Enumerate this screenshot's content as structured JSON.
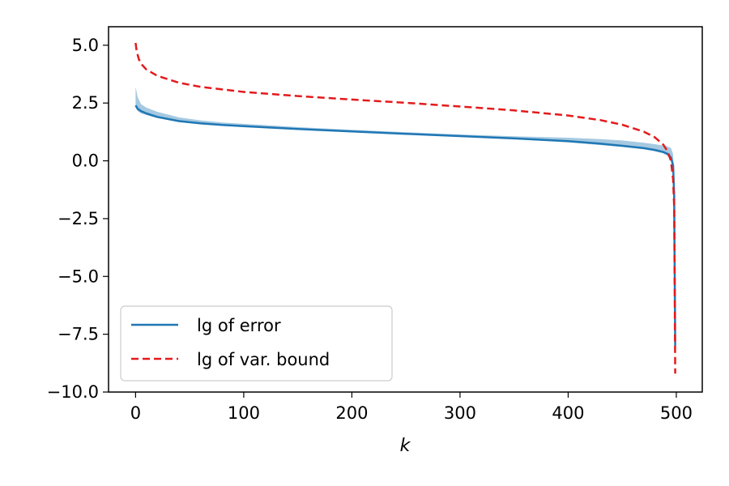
{
  "chart_data": {
    "type": "line",
    "title": "",
    "xlabel": "k",
    "ylabel": "",
    "xlim": [
      -25,
      524
    ],
    "ylim": [
      -10.0,
      5.8
    ],
    "x_ticks": [
      0,
      100,
      200,
      300,
      400,
      500
    ],
    "y_ticks": [
      5.0,
      2.5,
      0.0,
      -2.5,
      -5.0,
      -7.5,
      -10.0
    ],
    "y_tick_labels": [
      "5.0",
      "2.5",
      "0.0",
      "−2.5",
      "−5.0",
      "−7.5",
      "−10.0"
    ],
    "grid": false,
    "legend_position": "lower-left",
    "series": [
      {
        "name": "lg of error",
        "style": "solid",
        "color": "#1f77b4",
        "x": [
          0,
          2,
          5,
          10,
          20,
          40,
          60,
          80,
          100,
          150,
          200,
          250,
          300,
          350,
          400,
          430,
          450,
          470,
          480,
          488,
          492,
          495,
          497,
          498,
          499
        ],
        "y": [
          2.4,
          2.25,
          2.15,
          2.05,
          1.9,
          1.72,
          1.62,
          1.55,
          1.5,
          1.38,
          1.27,
          1.17,
          1.07,
          0.97,
          0.85,
          0.74,
          0.65,
          0.55,
          0.47,
          0.38,
          0.3,
          0.15,
          -0.2,
          -1.5,
          -8.0
        ]
      },
      {
        "name": "lg of var. bound",
        "style": "dashed",
        "color": "#e41a1c",
        "x": [
          0,
          1,
          3,
          5,
          10,
          20,
          40,
          60,
          100,
          150,
          200,
          250,
          300,
          350,
          400,
          430,
          450,
          470,
          480,
          488,
          492,
          495,
          497,
          498,
          499
        ],
        "y": [
          5.1,
          4.75,
          4.4,
          4.2,
          3.95,
          3.68,
          3.38,
          3.2,
          2.98,
          2.8,
          2.65,
          2.51,
          2.35,
          2.18,
          1.96,
          1.76,
          1.56,
          1.26,
          1.02,
          0.7,
          0.4,
          0.0,
          -0.8,
          -2.0,
          -9.2
        ]
      }
    ],
    "band": {
      "series": "lg of error",
      "color": "#1f77b4",
      "x": [
        0,
        2,
        5,
        10,
        20,
        40,
        60,
        80,
        100,
        150,
        200,
        250,
        300,
        350,
        400,
        430,
        450,
        470,
        480,
        488,
        492,
        495,
        497,
        498,
        499
      ],
      "lower": [
        2.3,
        2.15,
        2.05,
        1.98,
        1.85,
        1.68,
        1.58,
        1.52,
        1.47,
        1.35,
        1.24,
        1.14,
        1.04,
        0.94,
        0.8,
        0.68,
        0.6,
        0.5,
        0.42,
        0.32,
        0.2,
        0.0,
        -0.4,
        -1.8,
        -8.0
      ],
      "upper": [
        3.2,
        2.75,
        2.45,
        2.3,
        2.12,
        1.88,
        1.75,
        1.66,
        1.6,
        1.46,
        1.34,
        1.24,
        1.14,
        1.06,
        1.0,
        0.94,
        0.88,
        0.78,
        0.72,
        0.66,
        0.62,
        0.55,
        0.3,
        -1.2,
        -8.0
      ]
    }
  }
}
